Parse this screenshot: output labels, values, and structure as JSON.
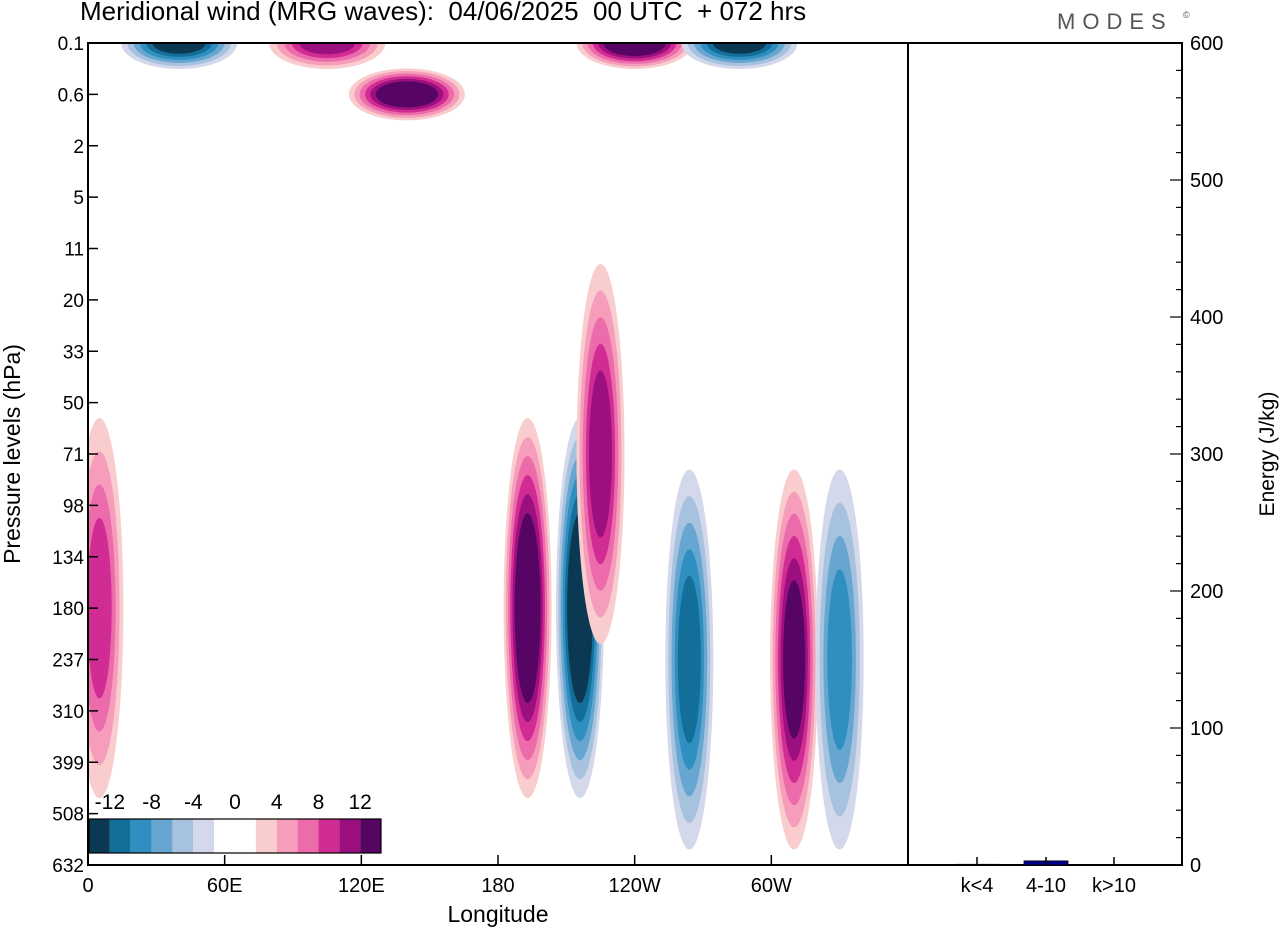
{
  "title": "Meridional wind (MRG waves):  04/06/2025  00 UTC  + 072 hrs",
  "brand": "MODES",
  "brand_mark": "©",
  "chart_data": [
    {
      "type": "heatmap",
      "title": "Meridional wind (MRG waves):  04/06/2025  00 UTC  + 072 hrs",
      "xlabel": "Longitude",
      "ylabel": "Pressure levels (hPa)",
      "x_ticks": [
        "0",
        "60E",
        "120E",
        "180",
        "120W",
        "60W"
      ],
      "x_tick_lon": [
        0,
        60,
        120,
        180,
        240,
        300
      ],
      "xlim": [
        0,
        360
      ],
      "y_ticks": [
        "0.1",
        "0.6",
        "2",
        "5",
        "11",
        "20",
        "33",
        "50",
        "71",
        "98",
        "134",
        "180",
        "237",
        "310",
        "399",
        "508",
        "632"
      ],
      "colorbar": {
        "labels": [
          "-12",
          "-8",
          "-4",
          "0",
          "4",
          "8",
          "12"
        ],
        "colors": [
          "#0b3954",
          "#136f9a",
          "#2f8fc0",
          "#66a6d0",
          "#a7c2de",
          "#d3d8ea",
          "#ffffff",
          "#ffffff",
          "#f9cdcd",
          "#f59dbb",
          "#ec6cab",
          "#d02c93",
          "#9c0f7f",
          "#560565"
        ]
      },
      "features": [
        {
          "lon": 193,
          "level": "180",
          "value": 14
        },
        {
          "lon": 216,
          "level": "180",
          "value": -14
        },
        {
          "lon": 225,
          "level": "71",
          "value": 10
        },
        {
          "lon": 264,
          "level": "237",
          "value": -10
        },
        {
          "lon": 310,
          "level": "237",
          "value": 12
        },
        {
          "lon": 330,
          "level": "237",
          "value": -8
        },
        {
          "lon": 5,
          "level": "180",
          "value": 8
        },
        {
          "lon": 140,
          "level": "0.6",
          "value": 14
        },
        {
          "lon": 240,
          "level": "0.1",
          "value": 14
        },
        {
          "lon": 105,
          "level": "0.1",
          "value": 10
        },
        {
          "lon": 40,
          "level": "0.1",
          "value": -12
        },
        {
          "lon": 286,
          "level": "0.1",
          "value": -12
        }
      ]
    },
    {
      "type": "bar",
      "ylabel": "Energy (J/kg)",
      "ylim": [
        0,
        600
      ],
      "y_ticks": [
        "0",
        "100",
        "200",
        "300",
        "400",
        "500",
        "600"
      ],
      "categories": [
        "k<4",
        "4-10",
        "k>10"
      ],
      "values": [
        0.5,
        3,
        0
      ],
      "bar_color": "#00008b"
    }
  ]
}
